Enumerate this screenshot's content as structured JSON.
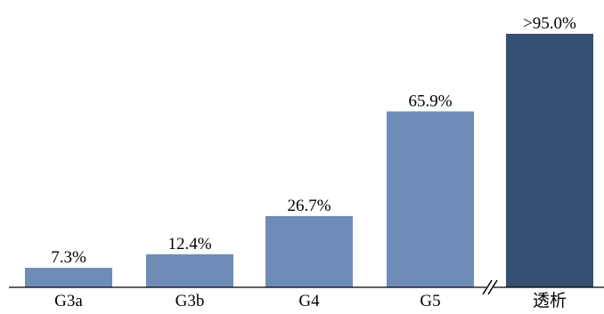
{
  "chart_data": {
    "type": "bar",
    "title": "",
    "xlabel": "",
    "ylabel": "",
    "categories": [
      "G3a",
      "G3b",
      "G4",
      "G5",
      "透析"
    ],
    "values": [
      7.3,
      12.4,
      26.7,
      65.9,
      95.0
    ],
    "data_labels": [
      "7.3%",
      "12.4%",
      "26.7%",
      "65.9%",
      ">95.0%"
    ],
    "ylim": [
      0,
      100
    ],
    "grid": false,
    "legend": "none",
    "axis_break_before_last": true,
    "colors": {
      "bar": "#6f8cb8",
      "last_bar": "#354e71",
      "axis": "#000000",
      "text": "#000000"
    }
  }
}
